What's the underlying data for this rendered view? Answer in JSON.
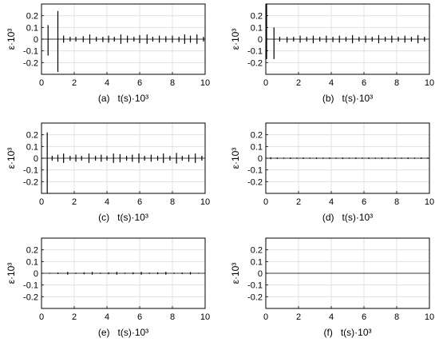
{
  "chart_data": [
    {
      "type": "bar",
      "panel": "a",
      "caption": "(a)",
      "xlabel": "t(s)·10³",
      "ylabel": "ε·10³",
      "xlim": [
        0,
        10
      ],
      "ylim": [
        -0.3,
        0.3
      ],
      "xticks": [
        "0",
        "2",
        "4",
        "6",
        "8",
        "10"
      ],
      "yticks": [
        "0.2",
        "0.1",
        "0",
        "-0.1",
        "-0.2"
      ],
      "grid": true,
      "spikes": [
        {
          "t": 0.4,
          "v": 0.12,
          "n": -0.14
        },
        {
          "t": 1.0,
          "v": 0.24,
          "n": -0.28
        },
        {
          "t": 1.35,
          "v": 0.03,
          "n": -0.03
        },
        {
          "t": 1.75,
          "v": 0.02,
          "n": -0.02
        },
        {
          "t": 2.1,
          "v": 0.02,
          "n": -0.02
        },
        {
          "t": 2.55,
          "v": 0.025,
          "n": -0.025
        },
        {
          "t": 2.95,
          "v": 0.04,
          "n": -0.04
        },
        {
          "t": 3.35,
          "v": 0.02,
          "n": -0.02
        },
        {
          "t": 3.75,
          "v": 0.02,
          "n": -0.025
        },
        {
          "t": 4.1,
          "v": 0.03,
          "n": -0.03
        },
        {
          "t": 4.45,
          "v": 0.02,
          "n": -0.02
        },
        {
          "t": 4.85,
          "v": 0.04,
          "n": -0.04
        },
        {
          "t": 5.25,
          "v": 0.03,
          "n": -0.03
        },
        {
          "t": 5.65,
          "v": 0.02,
          "n": -0.02
        },
        {
          "t": 6.0,
          "v": 0.035,
          "n": -0.035
        },
        {
          "t": 6.45,
          "v": 0.04,
          "n": -0.04
        },
        {
          "t": 6.8,
          "v": 0.02,
          "n": -0.02
        },
        {
          "t": 7.2,
          "v": 0.03,
          "n": -0.03
        },
        {
          "t": 7.6,
          "v": 0.025,
          "n": -0.025
        },
        {
          "t": 8.0,
          "v": 0.03,
          "n": -0.03
        },
        {
          "t": 8.4,
          "v": 0.02,
          "n": -0.025
        },
        {
          "t": 8.75,
          "v": 0.04,
          "n": -0.04
        },
        {
          "t": 9.1,
          "v": 0.03,
          "n": -0.03
        },
        {
          "t": 9.5,
          "v": 0.04,
          "n": -0.04
        },
        {
          "t": 9.9,
          "v": 0.02,
          "n": -0.02
        }
      ]
    },
    {
      "type": "bar",
      "panel": "b",
      "caption": "(b)",
      "xlabel": "t(s)·10³",
      "ylabel": "ε·10³",
      "xlim": [
        0,
        10
      ],
      "ylim": [
        -0.3,
        0.3
      ],
      "xticks": [
        "0",
        "2",
        "4",
        "6",
        "8",
        "10"
      ],
      "yticks": [
        "0.2",
        "0.1",
        "0",
        "-0.1",
        "-0.2"
      ],
      "grid": true,
      "spikes": [
        {
          "t": 0.05,
          "v": 0.3,
          "n": -0.17
        },
        {
          "t": 0.5,
          "v": 0.1,
          "n": -0.17
        },
        {
          "t": 0.85,
          "v": 0.02,
          "n": -0.02
        },
        {
          "t": 1.3,
          "v": 0.02,
          "n": -0.03
        },
        {
          "t": 1.7,
          "v": 0.02,
          "n": -0.02
        },
        {
          "t": 2.1,
          "v": 0.03,
          "n": -0.03
        },
        {
          "t": 2.5,
          "v": 0.02,
          "n": -0.02
        },
        {
          "t": 2.9,
          "v": 0.03,
          "n": -0.035
        },
        {
          "t": 3.3,
          "v": 0.02,
          "n": -0.02
        },
        {
          "t": 3.7,
          "v": 0.03,
          "n": -0.03
        },
        {
          "t": 4.1,
          "v": 0.02,
          "n": -0.025
        },
        {
          "t": 4.5,
          "v": 0.03,
          "n": -0.03
        },
        {
          "t": 4.9,
          "v": 0.02,
          "n": -0.02
        },
        {
          "t": 5.3,
          "v": 0.035,
          "n": -0.035
        },
        {
          "t": 5.7,
          "v": 0.02,
          "n": -0.02
        },
        {
          "t": 6.1,
          "v": 0.03,
          "n": -0.03
        },
        {
          "t": 6.5,
          "v": 0.02,
          "n": -0.02
        },
        {
          "t": 6.9,
          "v": 0.035,
          "n": -0.035
        },
        {
          "t": 7.3,
          "v": 0.02,
          "n": -0.02
        },
        {
          "t": 7.7,
          "v": 0.03,
          "n": -0.03
        },
        {
          "t": 8.1,
          "v": 0.02,
          "n": -0.02
        },
        {
          "t": 8.5,
          "v": 0.03,
          "n": -0.03
        },
        {
          "t": 8.9,
          "v": 0.02,
          "n": -0.02
        },
        {
          "t": 9.3,
          "v": 0.035,
          "n": -0.035
        },
        {
          "t": 9.7,
          "v": 0.02,
          "n": -0.02
        }
      ]
    },
    {
      "type": "bar",
      "panel": "c",
      "caption": "(c)",
      "xlabel": "t(s)·10³",
      "ylabel": "ε·10³",
      "xlim": [
        0,
        10
      ],
      "ylim": [
        -0.3,
        0.3
      ],
      "xticks": [
        "0",
        "2",
        "4",
        "6",
        "8",
        "10"
      ],
      "yticks": [
        "0.2",
        "0.1",
        "0",
        "-0.1",
        "-0.2"
      ],
      "grid": true,
      "spikes": [
        {
          "t": 0.35,
          "v": 0.22,
          "n": -0.3
        },
        {
          "t": 0.65,
          "v": 0.02,
          "n": -0.02
        },
        {
          "t": 1.0,
          "v": 0.03,
          "n": -0.03
        },
        {
          "t": 1.35,
          "v": 0.04,
          "n": -0.04
        },
        {
          "t": 1.75,
          "v": 0.02,
          "n": -0.02
        },
        {
          "t": 2.1,
          "v": 0.03,
          "n": -0.03
        },
        {
          "t": 2.45,
          "v": 0.02,
          "n": -0.02
        },
        {
          "t": 2.9,
          "v": 0.04,
          "n": -0.04
        },
        {
          "t": 3.3,
          "v": 0.02,
          "n": -0.02
        },
        {
          "t": 3.65,
          "v": 0.03,
          "n": -0.03
        },
        {
          "t": 4.0,
          "v": 0.02,
          "n": -0.02
        },
        {
          "t": 4.4,
          "v": 0.04,
          "n": -0.04
        },
        {
          "t": 4.8,
          "v": 0.035,
          "n": -0.035
        },
        {
          "t": 5.2,
          "v": 0.02,
          "n": -0.02
        },
        {
          "t": 5.55,
          "v": 0.03,
          "n": -0.03
        },
        {
          "t": 5.95,
          "v": 0.04,
          "n": -0.04
        },
        {
          "t": 6.3,
          "v": 0.02,
          "n": -0.02
        },
        {
          "t": 6.7,
          "v": 0.03,
          "n": -0.03
        },
        {
          "t": 7.1,
          "v": 0.02,
          "n": -0.02
        },
        {
          "t": 7.45,
          "v": 0.04,
          "n": -0.04
        },
        {
          "t": 7.85,
          "v": 0.02,
          "n": -0.02
        },
        {
          "t": 8.25,
          "v": 0.045,
          "n": -0.045
        },
        {
          "t": 8.6,
          "v": 0.02,
          "n": -0.02
        },
        {
          "t": 9.0,
          "v": 0.03,
          "n": -0.03
        },
        {
          "t": 9.4,
          "v": 0.04,
          "n": -0.04
        },
        {
          "t": 9.8,
          "v": 0.02,
          "n": -0.02
        }
      ]
    },
    {
      "type": "bar",
      "panel": "d",
      "caption": "(d)",
      "xlabel": "t(s)·10³",
      "ylabel": "ε·10³",
      "xlim": [
        0,
        10
      ],
      "ylim": [
        -0.3,
        0.3
      ],
      "xticks": [
        "0",
        "2",
        "4",
        "6",
        "8",
        "10"
      ],
      "yticks": [
        "0.2",
        "0.1",
        "0",
        "-0.1",
        "-0.2"
      ],
      "grid": true,
      "spikes": [
        {
          "t": 0.3,
          "v": 0.008,
          "n": -0.008
        },
        {
          "t": 0.7,
          "v": 0.006,
          "n": -0.006
        },
        {
          "t": 1.1,
          "v": 0.005,
          "n": -0.005
        },
        {
          "t": 1.5,
          "v": 0.006,
          "n": -0.006
        },
        {
          "t": 1.9,
          "v": 0.005,
          "n": -0.005
        },
        {
          "t": 2.3,
          "v": 0.006,
          "n": -0.006
        },
        {
          "t": 2.7,
          "v": 0.005,
          "n": -0.005
        },
        {
          "t": 3.1,
          "v": 0.006,
          "n": -0.006
        },
        {
          "t": 3.5,
          "v": 0.005,
          "n": -0.005
        },
        {
          "t": 3.9,
          "v": 0.006,
          "n": -0.006
        },
        {
          "t": 4.3,
          "v": 0.005,
          "n": -0.005
        },
        {
          "t": 4.7,
          "v": 0.006,
          "n": -0.006
        },
        {
          "t": 5.1,
          "v": 0.005,
          "n": -0.005
        },
        {
          "t": 5.5,
          "v": 0.006,
          "n": -0.006
        },
        {
          "t": 5.9,
          "v": 0.005,
          "n": -0.005
        },
        {
          "t": 6.3,
          "v": 0.006,
          "n": -0.006
        },
        {
          "t": 6.7,
          "v": 0.005,
          "n": -0.005
        },
        {
          "t": 7.1,
          "v": 0.006,
          "n": -0.006
        },
        {
          "t": 7.5,
          "v": 0.005,
          "n": -0.005
        },
        {
          "t": 7.9,
          "v": 0.006,
          "n": -0.006
        },
        {
          "t": 8.3,
          "v": 0.005,
          "n": -0.005
        },
        {
          "t": 8.7,
          "v": 0.006,
          "n": -0.006
        },
        {
          "t": 9.1,
          "v": 0.005,
          "n": -0.005
        },
        {
          "t": 9.5,
          "v": 0.006,
          "n": -0.006
        },
        {
          "t": 9.9,
          "v": 0.005,
          "n": -0.005
        }
      ]
    },
    {
      "type": "bar",
      "panel": "e",
      "caption": "(e)",
      "xlabel": "t(s)·10³",
      "ylabel": "ε·10³",
      "xlim": [
        0,
        10
      ],
      "ylim": [
        -0.3,
        0.3
      ],
      "xticks": [
        "0",
        "2",
        "4",
        "6",
        "8",
        "10"
      ],
      "yticks": [
        "0.2",
        "0.1",
        "0",
        "-0.1",
        "-0.2"
      ],
      "grid": true,
      "spikes": [
        {
          "t": 0.5,
          "v": 0.004,
          "n": -0.004
        },
        {
          "t": 1.0,
          "v": 0.006,
          "n": -0.006
        },
        {
          "t": 1.6,
          "v": 0.012,
          "n": -0.012
        },
        {
          "t": 2.1,
          "v": 0.005,
          "n": -0.005
        },
        {
          "t": 2.6,
          "v": 0.008,
          "n": -0.008
        },
        {
          "t": 3.1,
          "v": 0.012,
          "n": -0.012
        },
        {
          "t": 3.6,
          "v": 0.005,
          "n": -0.005
        },
        {
          "t": 4.1,
          "v": 0.008,
          "n": -0.008
        },
        {
          "t": 4.6,
          "v": 0.012,
          "n": -0.012
        },
        {
          "t": 5.1,
          "v": 0.005,
          "n": -0.005
        },
        {
          "t": 5.6,
          "v": 0.008,
          "n": -0.008
        },
        {
          "t": 6.1,
          "v": 0.012,
          "n": -0.012
        },
        {
          "t": 6.6,
          "v": 0.005,
          "n": -0.005
        },
        {
          "t": 7.1,
          "v": 0.008,
          "n": -0.008
        },
        {
          "t": 7.6,
          "v": 0.012,
          "n": -0.012
        },
        {
          "t": 8.1,
          "v": 0.005,
          "n": -0.005
        },
        {
          "t": 8.6,
          "v": 0.006,
          "n": -0.006
        },
        {
          "t": 9.1,
          "v": 0.01,
          "n": -0.01
        },
        {
          "t": 9.6,
          "v": 0.004,
          "n": -0.004
        }
      ]
    },
    {
      "type": "bar",
      "panel": "f",
      "caption": "(f)",
      "xlabel": "t(s)·10³",
      "ylabel": "ε·10³",
      "xlim": [
        0,
        10
      ],
      "ylim": [
        -0.3,
        0.3
      ],
      "xticks": [
        "0",
        "2",
        "4",
        "6",
        "8",
        "10"
      ],
      "yticks": [
        "0.2",
        "0.1",
        "0",
        "-0.1",
        "-0.2"
      ],
      "grid": true,
      "spikes": []
    }
  ]
}
